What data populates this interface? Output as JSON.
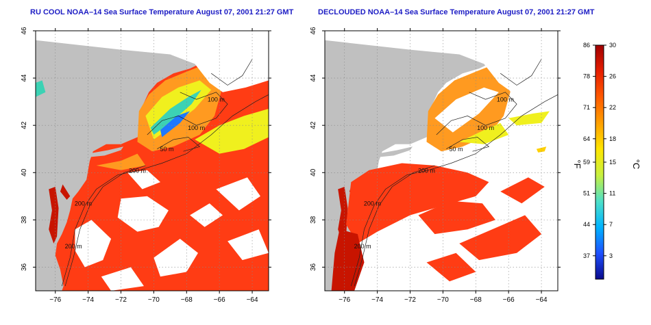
{
  "panels": [
    {
      "title": "RU COOL NOAA–14 Sea Surface Temperature August 07, 2001 21:27 GMT",
      "variant": "raw"
    },
    {
      "title": "DECLOUDED NOAA–14 Sea Surface Temperature August 07, 2001 21:27 GMT",
      "variant": "declouded"
    }
  ],
  "axes": {
    "x_ticks": [
      "−76",
      "−74",
      "−72",
      "−70",
      "−68",
      "−66",
      "−64"
    ],
    "y_ticks": [
      "36",
      "38",
      "40",
      "42",
      "44",
      "46"
    ],
    "x_range": [
      -77.2,
      -63.0
    ],
    "y_range": [
      35.0,
      46.0
    ]
  },
  "contour_labels": [
    {
      "text": "100 m",
      "lon": -66.2,
      "lat": 43.0
    },
    {
      "text": "100 m",
      "lon": -67.4,
      "lat": 41.8
    },
    {
      "text": "50 m",
      "lon": -69.2,
      "lat": 40.9
    },
    {
      "text": "200 m",
      "lon": -71.0,
      "lat": 40.0
    },
    {
      "text": "200 m",
      "lon": -74.3,
      "lat": 38.6
    },
    {
      "text": "200 m",
      "lon": -74.9,
      "lat": 36.8
    }
  ],
  "colorbar": {
    "fahrenheit_label": "°F",
    "celsius_label": "°C",
    "fahrenheit_ticks": [
      "86",
      "78",
      "71",
      "64",
      "59",
      "51",
      "44",
      "37"
    ],
    "celsius_ticks": [
      "30",
      "26",
      "22",
      "18",
      "15",
      "11",
      "7",
      "3"
    ],
    "celsius_range": [
      0,
      30
    ],
    "colors": [
      "#0a0a8c",
      "#1e50ff",
      "#00b4ff",
      "#4fe0c8",
      "#c8f040",
      "#ffe600",
      "#ffa000",
      "#ff5a00",
      "#e61e00",
      "#a00000"
    ]
  },
  "colors": {
    "land": "#c0c0c0",
    "cloud": "#ffffff",
    "warm": "#ff3c14",
    "deep_warm": "#c81400",
    "shelf": "#ff9a20",
    "cool": "#f0f01e",
    "cold": "#3cd2b4",
    "title": "#1c1cc4"
  }
}
